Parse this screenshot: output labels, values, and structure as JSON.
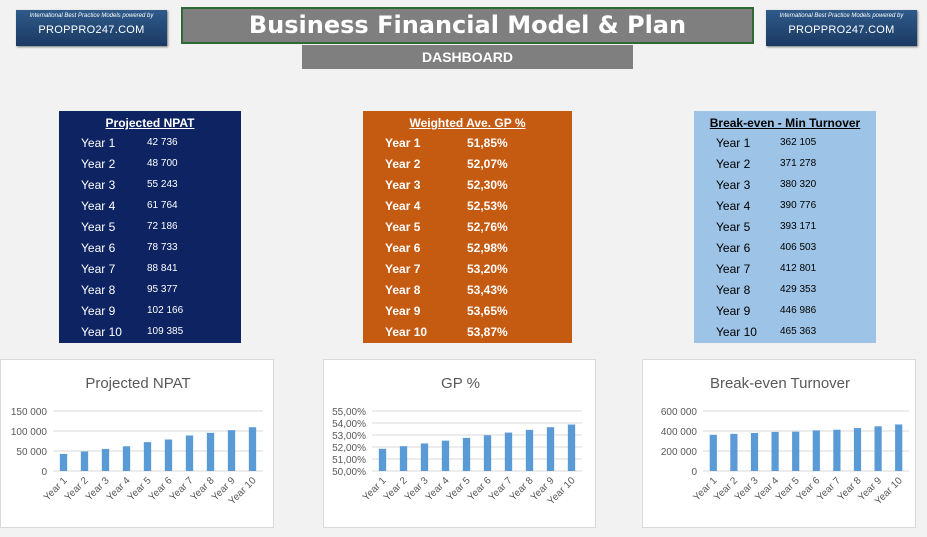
{
  "logo": {
    "tagline": "International Best Practice Models powered by",
    "brand": "PROPPRO247.COM"
  },
  "header": {
    "title": "Business Financial Model & Plan",
    "subtitle": "DASHBOARD"
  },
  "tables": {
    "npat": {
      "title": "Projected NPAT",
      "rows": [
        {
          "label": "Year 1",
          "value": "42 736"
        },
        {
          "label": "Year 2",
          "value": "48 700"
        },
        {
          "label": "Year 3",
          "value": "55 243"
        },
        {
          "label": "Year 4",
          "value": "61 764"
        },
        {
          "label": "Year 5",
          "value": "72 186"
        },
        {
          "label": "Year 6",
          "value": "78 733"
        },
        {
          "label": "Year 7",
          "value": "88 841"
        },
        {
          "label": "Year 8",
          "value": "95 377"
        },
        {
          "label": "Year 9",
          "value": "102 166"
        },
        {
          "label": "Year 10",
          "value": "109 385"
        }
      ]
    },
    "gp": {
      "title": "Weighted Ave. GP %",
      "rows": [
        {
          "label": "Year 1",
          "value": "51,85%"
        },
        {
          "label": "Year 2",
          "value": "52,07%"
        },
        {
          "label": "Year 3",
          "value": "52,30%"
        },
        {
          "label": "Year 4",
          "value": "52,53%"
        },
        {
          "label": "Year 5",
          "value": "52,76%"
        },
        {
          "label": "Year 6",
          "value": "52,98%"
        },
        {
          "label": "Year 7",
          "value": "53,20%"
        },
        {
          "label": "Year 8",
          "value": "53,43%"
        },
        {
          "label": "Year 9",
          "value": "53,65%"
        },
        {
          "label": "Year 10",
          "value": "53,87%"
        }
      ]
    },
    "be": {
      "title": "Break-even - Min Turnover",
      "rows": [
        {
          "label": "Year 1",
          "value": "362 105"
        },
        {
          "label": "Year 2",
          "value": "371 278"
        },
        {
          "label": "Year 3",
          "value": "380 320"
        },
        {
          "label": "Year 4",
          "value": "390 776"
        },
        {
          "label": "Year 5",
          "value": "393 171"
        },
        {
          "label": "Year 6",
          "value": "406 503"
        },
        {
          "label": "Year 7",
          "value": "412 801"
        },
        {
          "label": "Year 8",
          "value": "429 353"
        },
        {
          "label": "Year 9",
          "value": "446 986"
        },
        {
          "label": "Year 10",
          "value": "465 363"
        }
      ]
    }
  },
  "colors": {
    "bar": "#5b9bd5",
    "npat_panel": "#0d2362",
    "gp_panel": "#c55a11",
    "be_panel": "#9dc3e6"
  },
  "chart_data": [
    {
      "type": "bar",
      "title": "Projected NPAT",
      "categories": [
        "Year 1",
        "Year 2",
        "Year 3",
        "Year 4",
        "Year 5",
        "Year 6",
        "Year 7",
        "Year 8",
        "Year 9",
        "Year 10"
      ],
      "values": [
        42736,
        48700,
        55243,
        61764,
        72186,
        78733,
        88841,
        95377,
        102166,
        109385
      ],
      "yticks": [
        "0",
        "50 000",
        "100 000",
        "150 000"
      ],
      "ylim": [
        0,
        150000
      ],
      "grid": true
    },
    {
      "type": "bar",
      "title": "GP %",
      "categories": [
        "Year 1",
        "Year 2",
        "Year 3",
        "Year 4",
        "Year 5",
        "Year 6",
        "Year 7",
        "Year 8",
        "Year 9",
        "Year 10"
      ],
      "values": [
        51.85,
        52.07,
        52.3,
        52.53,
        52.76,
        52.98,
        53.2,
        53.43,
        53.65,
        53.87
      ],
      "yticks": [
        "50,00%",
        "51,00%",
        "52,00%",
        "53,00%",
        "54,00%",
        "55,00%"
      ],
      "ylim": [
        50,
        55
      ],
      "grid": true
    },
    {
      "type": "bar",
      "title": "Break-even Turnover",
      "categories": [
        "Year 1",
        "Year 2",
        "Year 3",
        "Year 4",
        "Year 5",
        "Year 6",
        "Year 7",
        "Year 8",
        "Year 9",
        "Year 10"
      ],
      "values": [
        362105,
        371278,
        380320,
        390776,
        393171,
        406503,
        412801,
        429353,
        446986,
        465363
      ],
      "yticks": [
        "0",
        "200 000",
        "400 000",
        "600 000"
      ],
      "ylim": [
        0,
        600000
      ],
      "grid": true
    }
  ]
}
